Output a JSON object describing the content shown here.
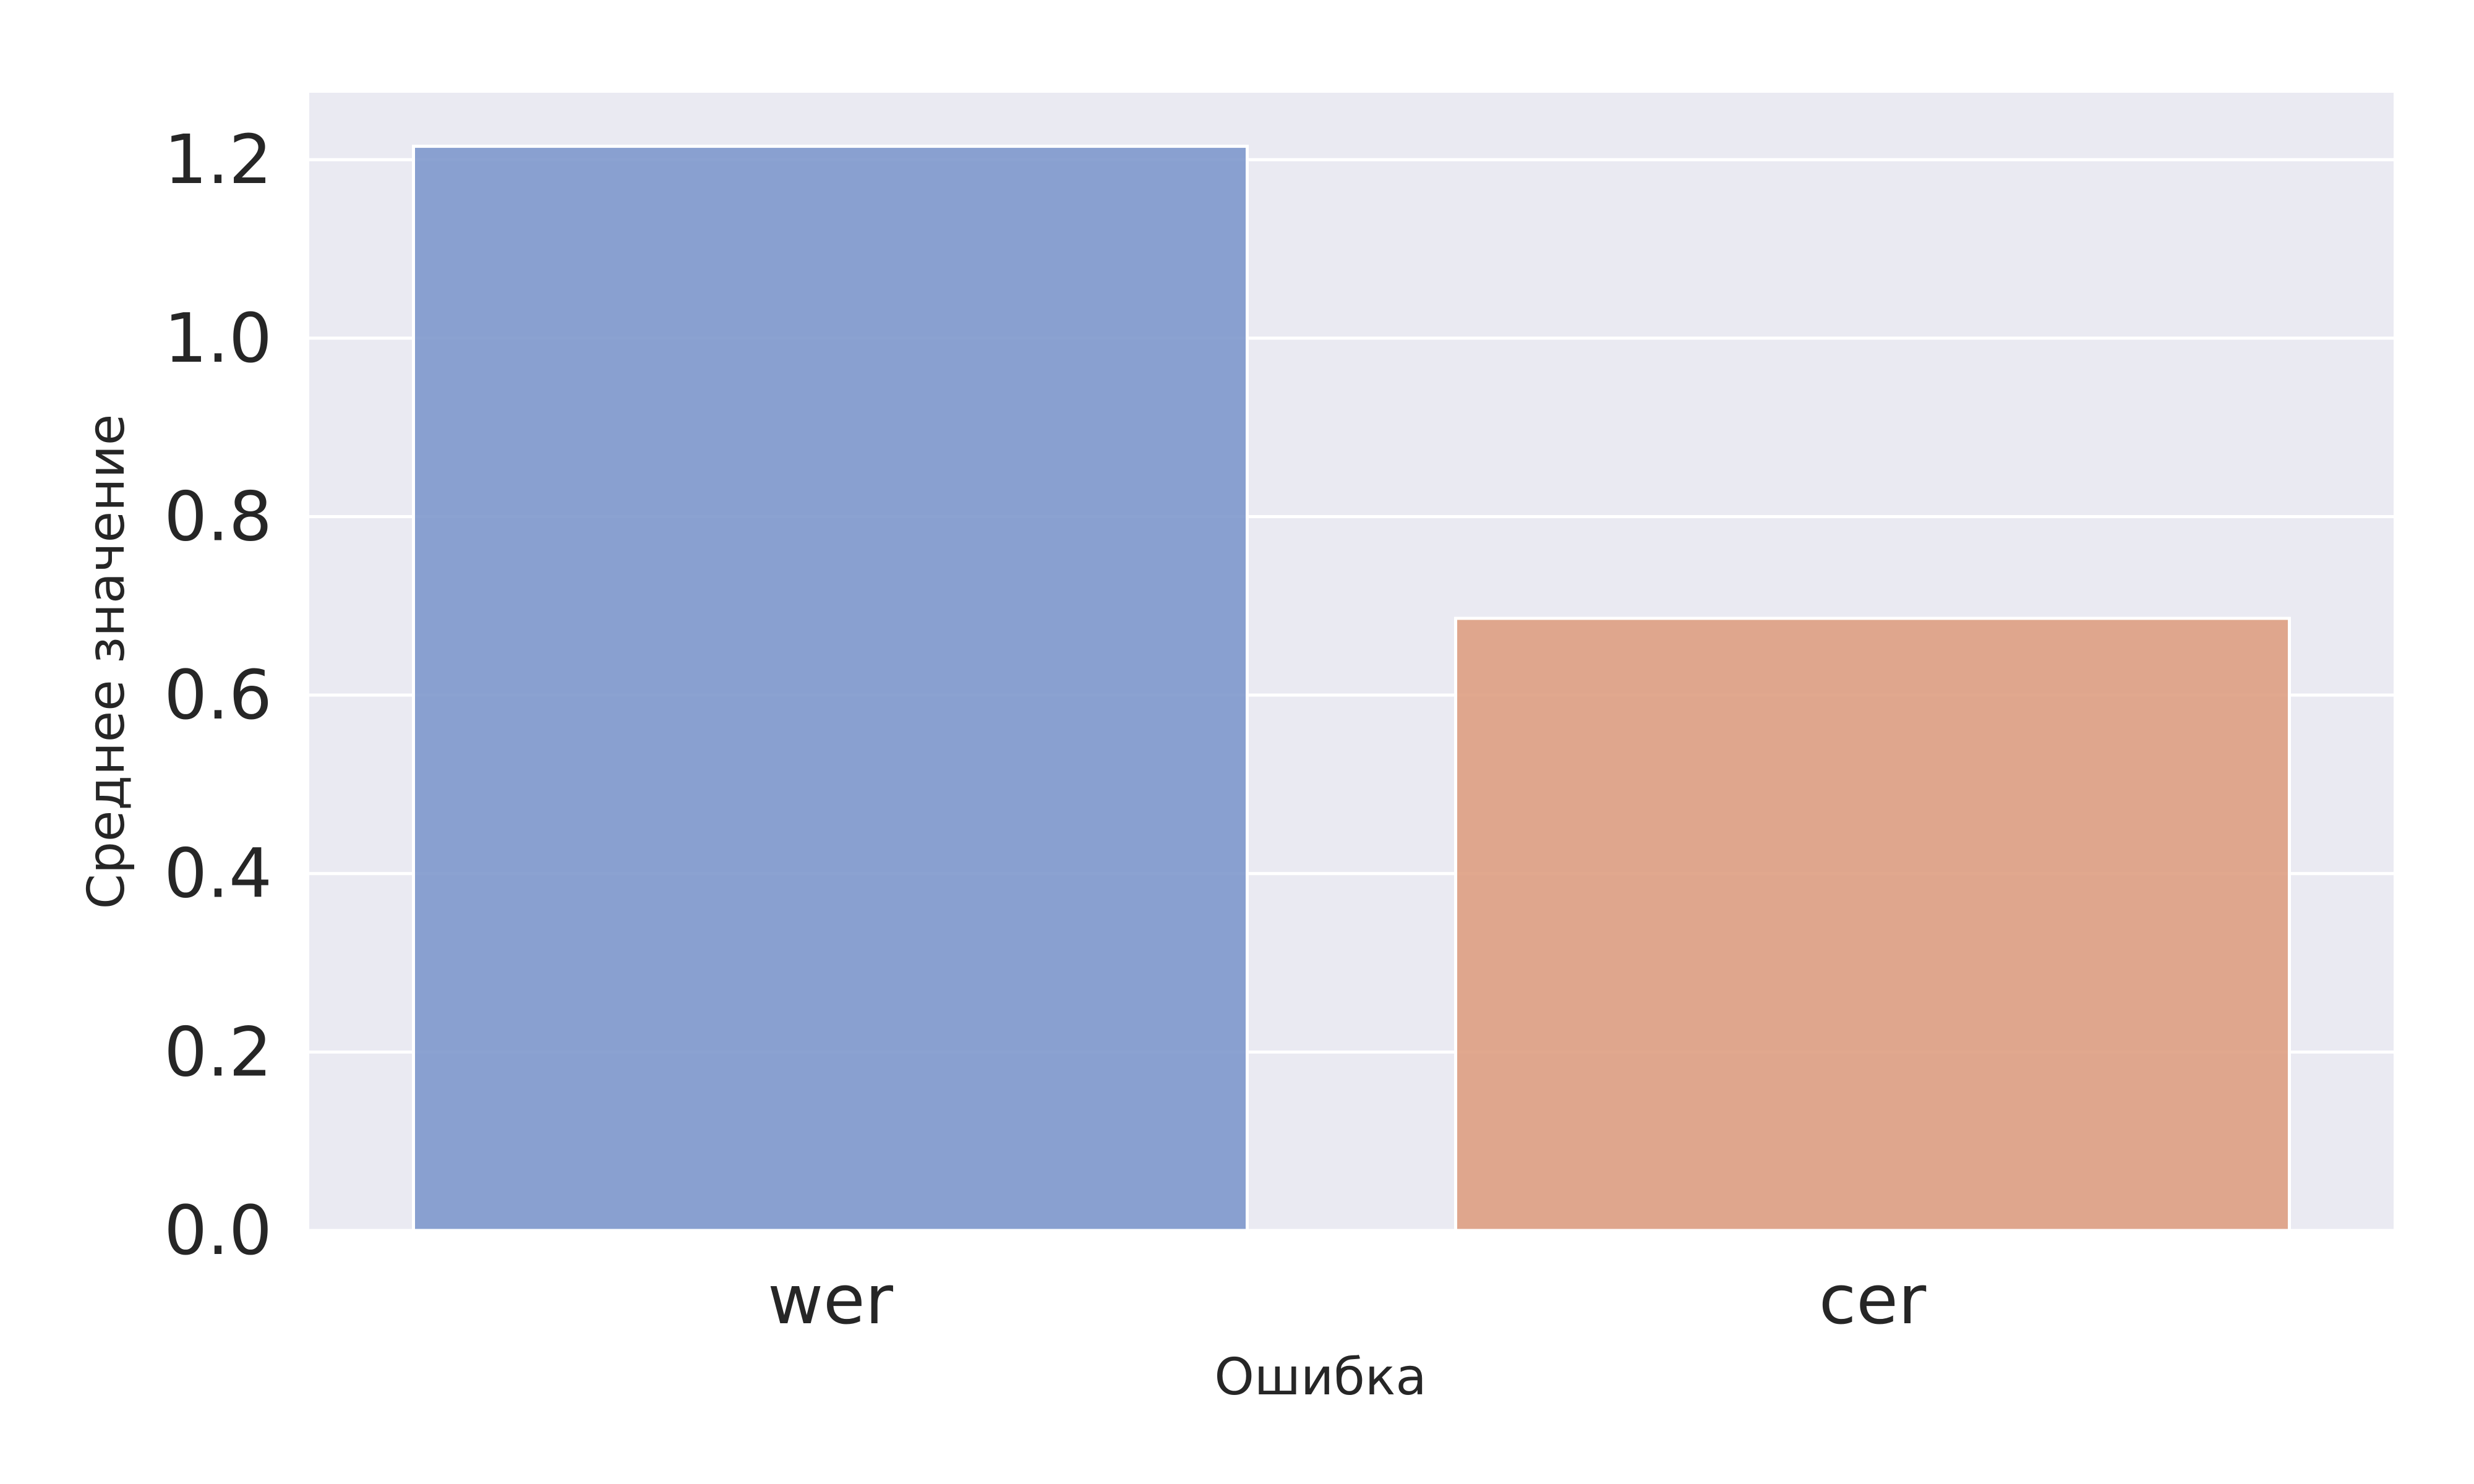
{
  "chart_data": {
    "type": "bar",
    "categories": [
      "wer",
      "cer"
    ],
    "values": [
      1.215,
      0.686
    ],
    "xlabel": "Ошибка",
    "ylabel": "Среднее значение",
    "ylim": [
      0,
      1.275
    ],
    "yticks": [
      0.0,
      0.2,
      0.4,
      0.6,
      0.8,
      1.0,
      1.2
    ],
    "ytick_labels": [
      "0.0",
      "0.2",
      "0.4",
      "0.6",
      "0.8",
      "1.0",
      "1.2"
    ],
    "grid": true,
    "colors": [
      "#7b95cb",
      "#dd9c7e"
    ],
    "background": "#eaeaf2"
  }
}
